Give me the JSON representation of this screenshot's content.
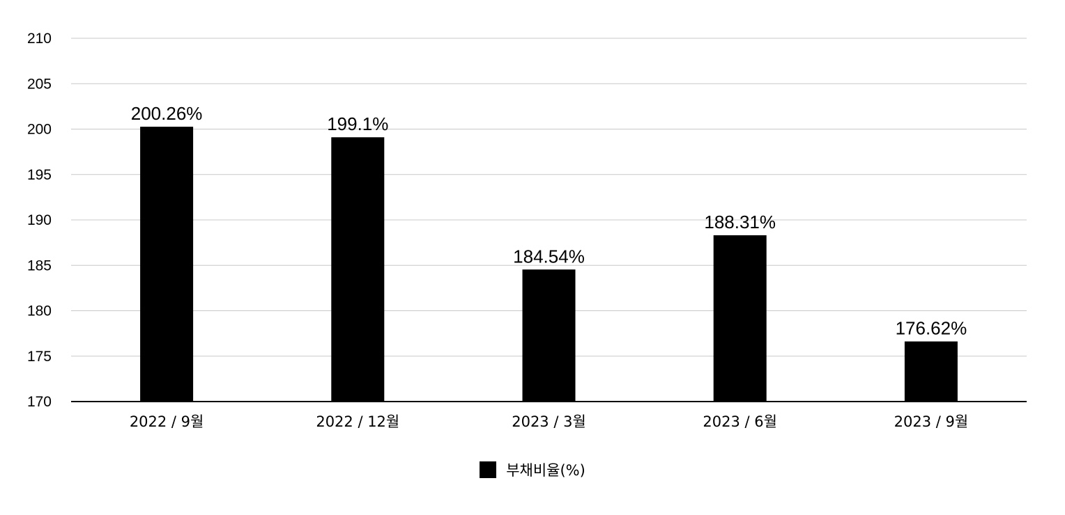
{
  "chart_data": {
    "type": "bar",
    "categories": [
      "2022 / 9월",
      "2022 / 12월",
      "2023 / 3월",
      "2023 / 6월",
      "2023 / 9월"
    ],
    "series": [
      {
        "name": "부채비율(%)",
        "values": [
          200.26,
          199.1,
          184.54,
          188.31,
          176.62
        ],
        "data_labels": [
          "200.26%",
          "199.1%",
          "184.54%",
          "188.31%",
          "176.62%"
        ]
      }
    ],
    "title": "",
    "xlabel": "",
    "ylabel": "",
    "ylim": [
      170,
      210
    ],
    "yticks": [
      "170",
      "175",
      "180",
      "185",
      "190",
      "195",
      "200",
      "205",
      "210"
    ],
    "grid": true,
    "legend_position": "bottom",
    "colors": {
      "bar": "#000000",
      "grid": "#c8c8c8",
      "axis": "#000000",
      "text": "#000000"
    }
  }
}
